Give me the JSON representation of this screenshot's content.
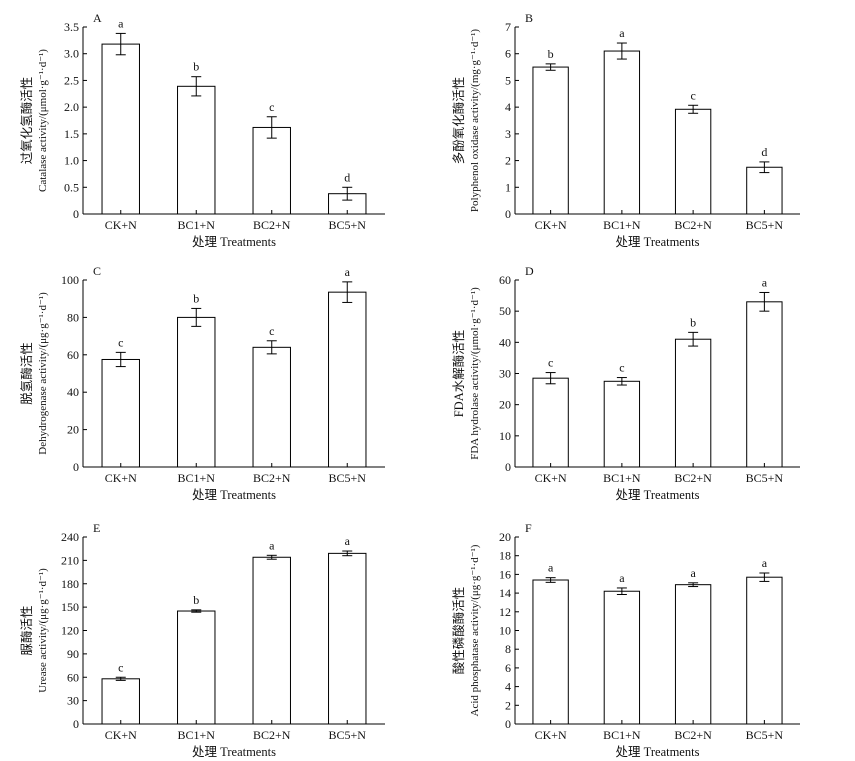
{
  "chart_data": [
    {
      "panel_label": "A",
      "type": "bar",
      "categories": [
        "CK+N",
        "BC1+N",
        "BC2+N",
        "BC5+N"
      ],
      "values": [
        3.18,
        2.39,
        1.62,
        0.38
      ],
      "errors": [
        0.2,
        0.18,
        0.2,
        0.12
      ],
      "letters": [
        "a",
        "b",
        "c",
        "d"
      ],
      "xlabel": "处理 Treatments",
      "ylabel_cn": "过氧化氢酶活性",
      "ylabel_en": "Catalase activity/(μmol·g⁻¹·d⁻¹)",
      "ylim": [
        0,
        3.5
      ],
      "yticks": [
        0,
        0.5,
        1.0,
        1.5,
        2.0,
        2.5,
        3.0,
        3.5
      ],
      "ytick_labels": [
        "0",
        "0.5",
        "1.0",
        "1.5",
        "2.0",
        "2.5",
        "3.0",
        "3.5"
      ]
    },
    {
      "panel_label": "B",
      "type": "bar",
      "categories": [
        "CK+N",
        "BC1+N",
        "BC2+N",
        "BC5+N"
      ],
      "values": [
        5.5,
        6.1,
        3.92,
        1.75
      ],
      "errors": [
        0.12,
        0.3,
        0.15,
        0.2
      ],
      "letters": [
        "b",
        "a",
        "c",
        "d"
      ],
      "xlabel": "处理 Treatments",
      "ylabel_cn": "多酚氧化酶活性",
      "ylabel_en": "Polyphenol oxidase activity/(mg·g⁻¹·d⁻¹)",
      "ylim": [
        0,
        7
      ],
      "yticks": [
        0,
        1,
        2,
        3,
        4,
        5,
        6,
        7
      ],
      "ytick_labels": [
        "0",
        "1",
        "2",
        "3",
        "4",
        "5",
        "6",
        "7"
      ]
    },
    {
      "panel_label": "C",
      "type": "bar",
      "categories": [
        "CK+N",
        "BC1+N",
        "BC2+N",
        "BC5+N"
      ],
      "values": [
        57.5,
        80,
        64,
        93.5
      ],
      "errors": [
        3.8,
        4.8,
        3.5,
        5.5
      ],
      "letters": [
        "c",
        "b",
        "c",
        "a"
      ],
      "xlabel": "处理 Treatments",
      "ylabel_cn": "脱氢酶活性",
      "ylabel_en": "Dehydrogenase activity/(μg·g⁻¹·d⁻¹)",
      "ylim": [
        0,
        100
      ],
      "yticks": [
        0,
        20,
        40,
        60,
        80,
        100
      ],
      "ytick_labels": [
        "0",
        "20",
        "40",
        "60",
        "80",
        "100"
      ]
    },
    {
      "panel_label": "D",
      "type": "bar",
      "categories": [
        "CK+N",
        "BC1+N",
        "BC2+N",
        "BC5+N"
      ],
      "values": [
        28.5,
        27.5,
        41,
        53
      ],
      "errors": [
        1.8,
        1.2,
        2.2,
        3.0
      ],
      "letters": [
        "c",
        "c",
        "b",
        "a"
      ],
      "xlabel": "处理 Treatments",
      "ylabel_cn": "FDA水解酶活性",
      "ylabel_en": "FDA hydrolase activity/(μmol·g⁻¹·d⁻¹)",
      "ylim": [
        0,
        60
      ],
      "yticks": [
        0,
        10,
        20,
        30,
        40,
        50,
        60
      ],
      "ytick_labels": [
        "0",
        "10",
        "20",
        "30",
        "40",
        "50",
        "60"
      ]
    },
    {
      "panel_label": "E",
      "type": "bar",
      "categories": [
        "CK+N",
        "BC1+N",
        "BC2+N",
        "BC5+N"
      ],
      "values": [
        58,
        145,
        214,
        219
      ],
      "errors": [
        2,
        1.5,
        2.5,
        3
      ],
      "letters": [
        "c",
        "b",
        "a",
        "a"
      ],
      "xlabel": "处理 Treatments",
      "ylabel_cn": "脲酶活性",
      "ylabel_en": "Urease activity/(μg·g⁻¹·d⁻¹)",
      "ylim": [
        0,
        240
      ],
      "yticks": [
        0,
        30,
        60,
        90,
        120,
        150,
        180,
        210,
        240
      ],
      "ytick_labels": [
        "0",
        "30",
        "60",
        "90",
        "120",
        "150",
        "180",
        "210",
        "240"
      ]
    },
    {
      "panel_label": "F",
      "type": "bar",
      "categories": [
        "CK+N",
        "BC1+N",
        "BC2+N",
        "BC5+N"
      ],
      "values": [
        15.4,
        14.2,
        14.9,
        15.7
      ],
      "errors": [
        0.25,
        0.35,
        0.2,
        0.45
      ],
      "letters": [
        "a",
        "a",
        "a",
        "a"
      ],
      "xlabel": "处理 Treatments",
      "ylabel_cn": "酸性磷酸酶活性",
      "ylabel_en": "Acid phosphatase activity/(μg·g⁻¹·d⁻¹)",
      "ylim": [
        0,
        20
      ],
      "yticks": [
        0,
        2,
        4,
        6,
        8,
        10,
        12,
        14,
        16,
        18,
        20
      ],
      "ytick_labels": [
        "0",
        "2",
        "4",
        "6",
        "8",
        "10",
        "12",
        "14",
        "16",
        "18",
        "20"
      ]
    }
  ]
}
